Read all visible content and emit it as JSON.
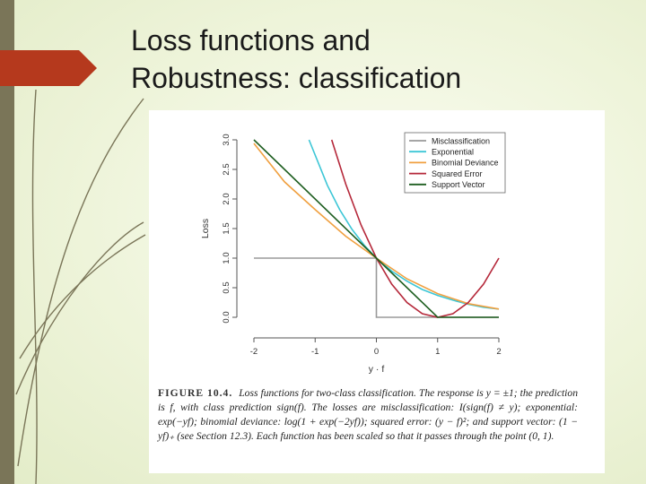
{
  "slide": {
    "title_line1": "Loss functions and",
    "title_line2": "Robustness: classification"
  },
  "figure": {
    "label": "FIGURE 10.4.",
    "caption": "Loss functions for two-class classification. The response is y = ±1; the prediction is f, with class prediction sign(f). The losses are misclassification: I(sign(f) ≠ y); exponential: exp(−yf); binomial deviance: log(1 + exp(−2yf)); squared error: (y − f)²; and support vector: (1 − yf)₊ (see Section 12.3). Each function has been scaled so that it passes through the point (0, 1)."
  },
  "colors": {
    "accent_arrow": "#b5391d",
    "left_bar": "#7a7558",
    "misclassification": "#9a9a9a",
    "exponential": "#3cc6d6",
    "binomial_deviance": "#f0a040",
    "squared_error": "#b5283a",
    "support_vector": "#1e5e20"
  },
  "chart_data": {
    "type": "line",
    "title": "",
    "xlabel": "y · f",
    "ylabel": "Loss",
    "xlim": [
      -2,
      2
    ],
    "ylim": [
      0,
      3
    ],
    "x_ticks": [
      "-2",
      "-1",
      "0",
      "1",
      "2"
    ],
    "y_ticks": [
      "0.0",
      "0.5",
      "1.0",
      "1.5",
      "2.0",
      "2.5",
      "3.0"
    ],
    "legend_position": "top-right",
    "series": [
      {
        "name": "Misclassification",
        "color": "#9a9a9a",
        "x": [
          -2,
          0,
          0,
          2
        ],
        "y": [
          1,
          1,
          0,
          0
        ]
      },
      {
        "name": "Exponential",
        "color": "#3cc6d6",
        "x": [
          -1.1,
          -0.8,
          -0.6,
          -0.4,
          -0.2,
          0,
          0.25,
          0.5,
          0.75,
          1,
          1.25,
          1.5,
          1.75,
          2
        ],
        "y": [
          3.0,
          2.23,
          1.82,
          1.49,
          1.22,
          1.0,
          0.78,
          0.61,
          0.47,
          0.37,
          0.29,
          0.22,
          0.17,
          0.14
        ]
      },
      {
        "name": "Binomial Deviance",
        "color": "#f0a040",
        "x": [
          -2,
          -1.5,
          -1,
          -0.5,
          0,
          0.5,
          1,
          1.5,
          2
        ],
        "y": [
          2.94,
          2.29,
          1.82,
          1.37,
          1.0,
          0.65,
          0.4,
          0.23,
          0.14
        ]
      },
      {
        "name": "Squared Error",
        "color": "#b5283a",
        "x": [
          -0.73,
          -0.5,
          -0.25,
          0,
          0.25,
          0.5,
          0.75,
          1,
          1.25,
          1.5,
          1.75,
          2
        ],
        "y": [
          3.0,
          2.25,
          1.56,
          1.0,
          0.56,
          0.25,
          0.06,
          0,
          0.06,
          0.25,
          0.56,
          1.0
        ]
      },
      {
        "name": "Support Vector",
        "color": "#1e5e20",
        "x": [
          -2,
          0,
          1,
          2
        ],
        "y": [
          3,
          1,
          0,
          0
        ]
      }
    ]
  }
}
